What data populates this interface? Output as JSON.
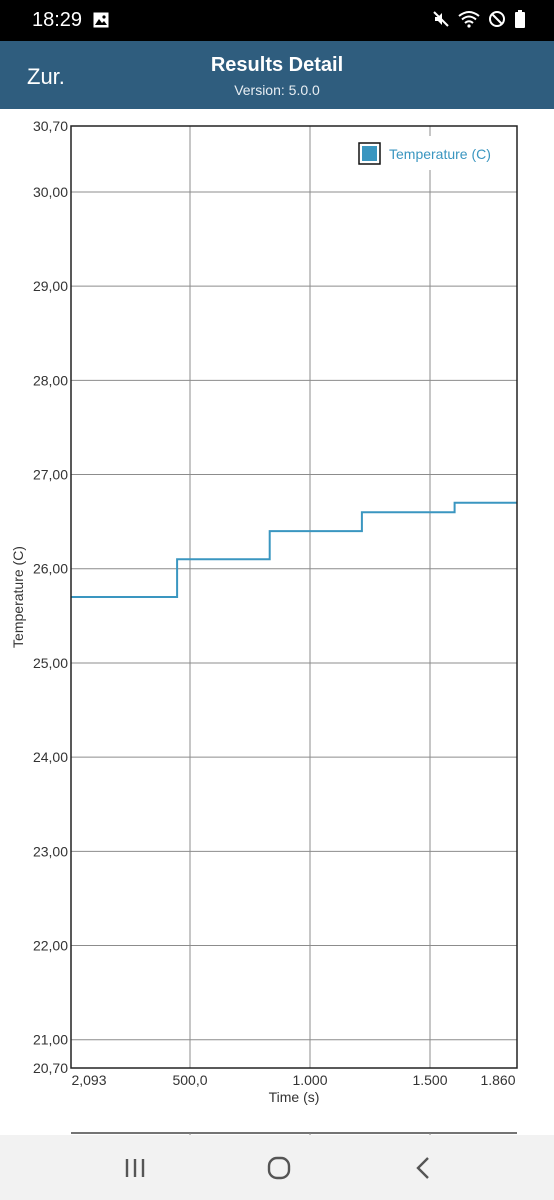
{
  "status_bar": {
    "time": "18:29",
    "icons": [
      "image-icon",
      "mute-icon",
      "wifi-icon",
      "block-icon",
      "battery-icon"
    ]
  },
  "app_bar": {
    "back_label": "Zur.",
    "title": "Results Detail",
    "subtitle": "Version: 5.0.0",
    "color": "#2f5d7e"
  },
  "chart_data": {
    "type": "line",
    "xlabel": "Time (s)",
    "ylabel": "Temperature (C)",
    "x_tick_labels": [
      "2,093",
      "500,0",
      "1.000",
      "1.500",
      "1.860"
    ],
    "y_tick_labels": [
      "30,70",
      "30,00",
      "29,00",
      "28,00",
      "27,00",
      "26,00",
      "25,00",
      "24,00",
      "23,00",
      "22,00",
      "21,00",
      "20,70"
    ],
    "xlim": [
      2.093,
      1860
    ],
    "ylim": [
      20.7,
      30.7
    ],
    "grid": true,
    "legend_position": "top-right",
    "series": [
      {
        "name": "Temperature (C)",
        "color": "#3a96c0",
        "step": true,
        "x": [
          2.093,
          444,
          444,
          830,
          830,
          1214,
          1214,
          1600,
          1600,
          1860
        ],
        "y": [
          25.7,
          25.7,
          26.1,
          26.1,
          26.4,
          26.4,
          26.6,
          26.6,
          26.7,
          26.7
        ]
      }
    ]
  },
  "nav_bar": {
    "icons": [
      "recent-apps-icon",
      "home-icon",
      "back-icon"
    ]
  }
}
